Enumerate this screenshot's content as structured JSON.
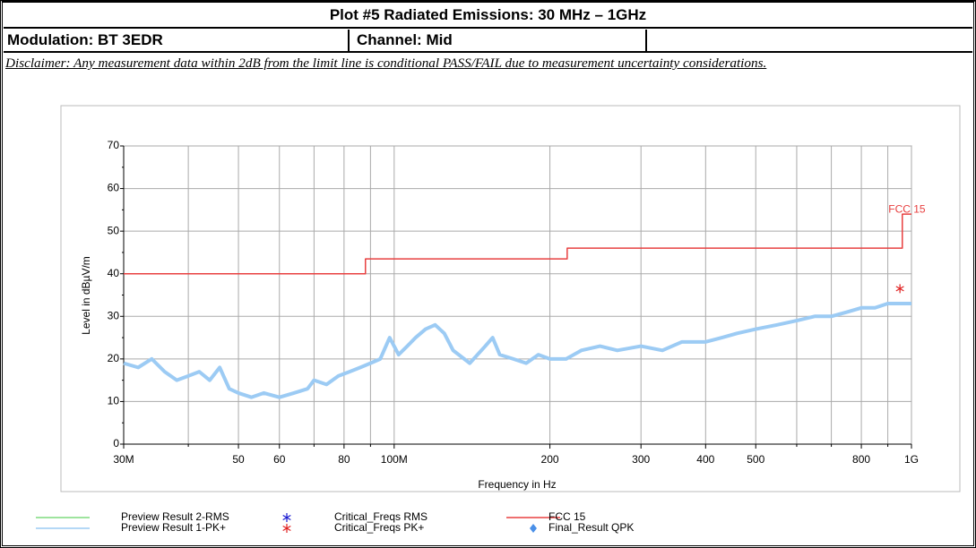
{
  "header": {
    "title": "Plot #5 Radiated Emissions: 30 MHz – 1GHz",
    "modulation": "Modulation: BT 3EDR",
    "channel": "Channel: Mid",
    "disclaimer": "Disclaimer: Any measurement data within 2dB from the limit line is conditional PASS/FAIL due to measurement uncertainty considerations."
  },
  "chart_data": {
    "type": "line",
    "xlabel": "Frequency in Hz",
    "ylabel": "Level in dBµV/m",
    "xscale": "log",
    "grid": true,
    "xlim": [
      30000000.0,
      1000000000.0
    ],
    "ylim": [
      0,
      70
    ],
    "xticks": [
      {
        "value": 30000000.0,
        "label": "30M"
      },
      {
        "value": 50000000.0,
        "label": "50"
      },
      {
        "value": 60000000.0,
        "label": "60"
      },
      {
        "value": 80000000.0,
        "label": "80"
      },
      {
        "value": 100000000.0,
        "label": "100M"
      },
      {
        "value": 200000000.0,
        "label": "200"
      },
      {
        "value": 300000000.0,
        "label": "300"
      },
      {
        "value": 400000000.0,
        "label": "400"
      },
      {
        "value": 500000000.0,
        "label": "500"
      },
      {
        "value": 800000000.0,
        "label": "800"
      },
      {
        "value": 1000000000.0,
        "label": "1G"
      }
    ],
    "x_minor_ticks": [
      40000000.0,
      70000000.0,
      90000000.0,
      600000000.0,
      700000000.0,
      900000000.0
    ],
    "yticks": [
      0,
      10,
      20,
      30,
      40,
      50,
      60,
      70
    ],
    "annotations": [
      {
        "text": "FCC 15",
        "x": 980000000.0,
        "y": 55,
        "color": "#e84040"
      }
    ],
    "series": [
      {
        "name": "Preview Result 2-RMS",
        "color": "#7fdc7f",
        "style": "line",
        "x": [],
        "values": []
      },
      {
        "name": "Preview Result 1-PK+",
        "color": "#9ccbf4",
        "style": "line",
        "x": [
          30000000.0,
          32000000.0,
          34000000.0,
          36000000.0,
          38000000.0,
          40000000.0,
          42000000.0,
          44000000.0,
          46000000.0,
          48000000.0,
          50000000.0,
          53000000.0,
          56000000.0,
          60000000.0,
          64000000.0,
          68000000.0,
          70000000.0,
          74000000.0,
          78000000.0,
          82000000.0,
          86000000.0,
          90000000.0,
          94000000.0,
          98000000.0,
          102000000.0,
          106000000.0,
          110000000.0,
          115000000.0,
          120000000.0,
          125000000.0,
          130000000.0,
          140000000.0,
          150000000.0,
          155000000.0,
          160000000.0,
          170000000.0,
          180000000.0,
          190000000.0,
          200000000.0,
          215000000.0,
          230000000.0,
          250000000.0,
          270000000.0,
          300000000.0,
          330000000.0,
          360000000.0,
          400000000.0,
          430000000.0,
          460000000.0,
          500000000.0,
          550000000.0,
          600000000.0,
          650000000.0,
          700000000.0,
          750000000.0,
          800000000.0,
          850000000.0,
          900000000.0,
          950000000.0,
          1000000000.0
        ],
        "values": [
          19,
          18,
          20,
          17,
          15,
          16,
          17,
          15,
          18,
          13,
          12,
          11,
          12,
          11,
          12,
          13,
          15,
          14,
          16,
          17,
          18,
          19,
          20,
          25,
          21,
          23,
          25,
          27,
          28,
          26,
          22,
          19,
          23,
          25,
          21,
          20,
          19,
          21,
          20,
          20,
          22,
          23,
          22,
          23,
          22,
          24,
          24,
          25,
          26,
          27,
          28,
          29,
          30,
          30,
          31,
          32,
          32,
          33,
          33,
          33
        ]
      },
      {
        "name": "Critical_Freqs RMS",
        "color": "#1a1ad0",
        "style": "asterisk",
        "x": [],
        "values": []
      },
      {
        "name": "Critical_Freqs PK+",
        "color": "#e02020",
        "style": "asterisk",
        "x": [
          950000000.0
        ],
        "values": [
          36.5
        ]
      },
      {
        "name": "FCC 15",
        "color": "#e84040",
        "style": "line",
        "x": [
          30000000.0,
          88000000.0,
          88000000.0,
          216000000.0,
          216000000.0,
          960000000.0,
          960000000.0,
          1000000000.0
        ],
        "values": [
          40,
          40,
          43.5,
          43.5,
          46,
          46,
          54,
          54
        ]
      },
      {
        "name": "Final_Result QPK",
        "color": "#4a90e8",
        "style": "diamond",
        "x": [],
        "values": []
      }
    ]
  }
}
